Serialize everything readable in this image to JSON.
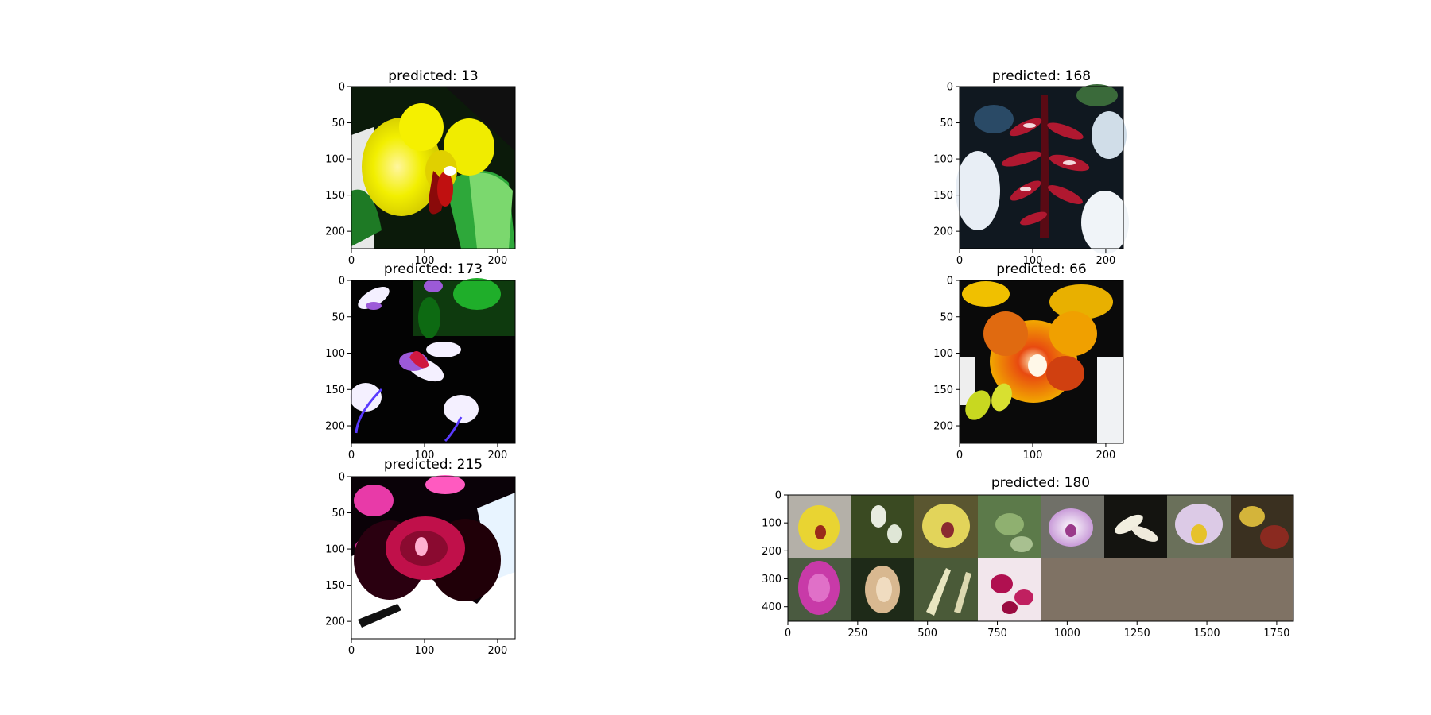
{
  "chart_data": [
    {
      "type": "image",
      "title": "predicted: 13",
      "xlim": [
        0,
        224
      ],
      "ylim": [
        224,
        0
      ],
      "x_ticks": [
        0,
        100,
        200
      ],
      "y_ticks": [
        0,
        50,
        100,
        150,
        200
      ],
      "content": "yellow-orchid"
    },
    {
      "type": "image",
      "title": "predicted: 168",
      "xlim": [
        0,
        224
      ],
      "ylim": [
        224,
        0
      ],
      "x_ticks": [
        0,
        100,
        200
      ],
      "y_ticks": [
        0,
        50,
        100,
        150,
        200
      ],
      "content": "red-spike-orchid"
    },
    {
      "type": "image",
      "title": "predicted: 173",
      "xlim": [
        0,
        224
      ],
      "ylim": [
        224,
        0
      ],
      "x_ticks": [
        0,
        100,
        200
      ],
      "y_ticks": [
        0,
        50,
        100,
        150,
        200
      ],
      "content": "white-violet-orchids"
    },
    {
      "type": "image",
      "title": "predicted: 66",
      "xlim": [
        0,
        224
      ],
      "ylim": [
        224,
        0
      ],
      "x_ticks": [
        0,
        100,
        200
      ],
      "y_ticks": [
        0,
        50,
        100,
        150,
        200
      ],
      "content": "orange-orchid"
    },
    {
      "type": "image",
      "title": "predicted: 215",
      "xlim": [
        0,
        224
      ],
      "ylim": [
        224,
        0
      ],
      "x_ticks": [
        0,
        100,
        200
      ],
      "y_ticks": [
        0,
        50,
        100,
        150,
        200
      ],
      "content": "dark-magenta-orchid"
    },
    {
      "type": "image-grid",
      "title": "predicted: 180",
      "xlim": [
        0,
        1810
      ],
      "ylim": [
        452,
        0
      ],
      "x_ticks": [
        0,
        250,
        500,
        750,
        1000,
        1250,
        1500,
        1750
      ],
      "y_ticks": [
        0,
        100,
        200,
        300,
        400
      ],
      "grid_rows": 2,
      "grid_cols": 8,
      "filled_tiles": 12,
      "empty_fill": "#7f7264"
    }
  ]
}
